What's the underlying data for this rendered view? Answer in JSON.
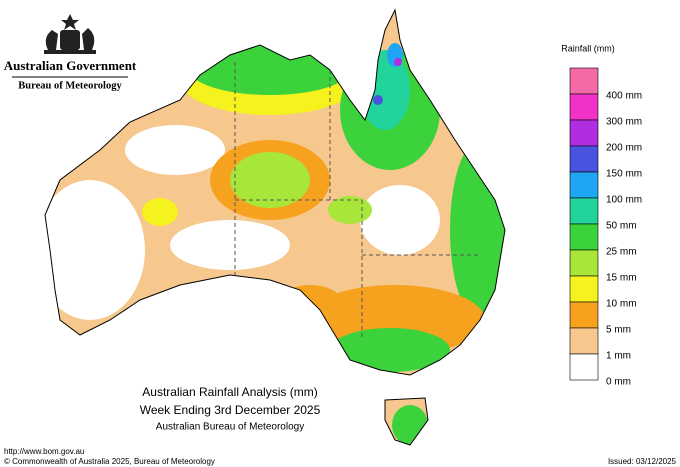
{
  "header": {
    "agency": "Australian Government",
    "bureau": "Bureau of Meteorology"
  },
  "legend": {
    "title": "Rainfall (mm)",
    "items": [
      {
        "color": "#f46aa6"
      },
      {
        "label": "400 mm",
        "color": "#f032c8"
      },
      {
        "label": "300 mm",
        "color": "#b02ee0"
      },
      {
        "label": "200 mm",
        "color": "#4a52e0"
      },
      {
        "label": "150 mm",
        "color": "#1ea6f2"
      },
      {
        "label": "100 mm",
        "color": "#22d49c"
      },
      {
        "label": "50 mm",
        "color": "#3cd23c"
      },
      {
        "label": "25 mm",
        "color": "#a8e63a"
      },
      {
        "label": "15 mm",
        "color": "#f6f21e"
      },
      {
        "label": "10 mm",
        "color": "#f6a21e"
      },
      {
        "label": "5 mm",
        "color": "#f6c88e"
      },
      {
        "label": "1 mm",
        "color": "#ffffff"
      }
    ]
  },
  "zero_label": "0 mm",
  "caption": {
    "line1": "Australian Rainfall Analysis (mm)",
    "line2": "Week Ending 3rd December 2025",
    "line3": "Australian Bureau of Meteorology"
  },
  "footer": {
    "url": "http://www.bom.gov.au",
    "copyright": "© Commonwealth of Australia 2025, Bureau of Meteorology",
    "issued": "Issued: 03/12/2025"
  }
}
